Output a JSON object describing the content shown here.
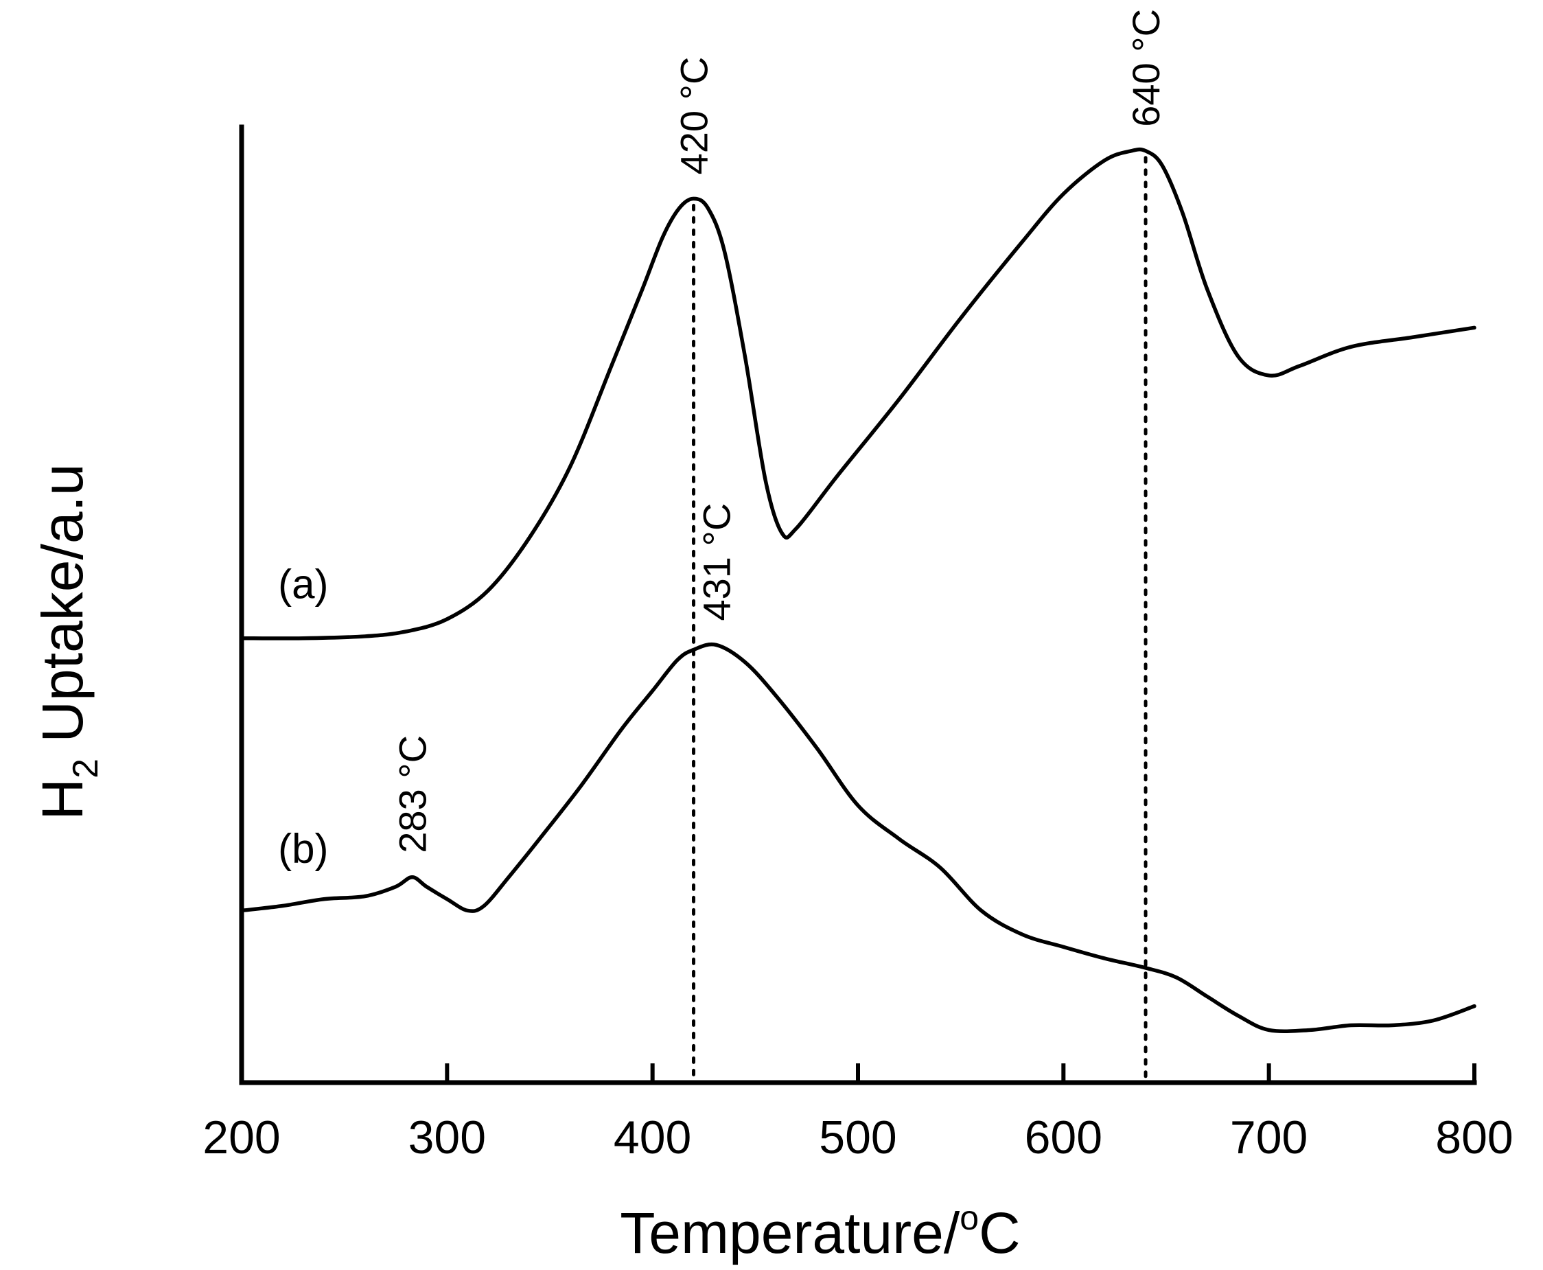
{
  "chart_data": {
    "type": "line",
    "title": "",
    "xlabel": "Temperature/°C",
    "ylabel": "H2 Uptake/a.u",
    "ylabel_parts": {
      "main": "H",
      "sub": "2",
      "rest": " Uptake/a.u"
    },
    "xlabel_parts": {
      "main": "Temperature/",
      "sup": "o",
      "rest": "C"
    },
    "xlim": [
      200,
      800
    ],
    "ylim": [
      0,
      100
    ],
    "xticks": [
      200,
      300,
      400,
      500,
      600,
      700,
      800
    ],
    "xtick_labels": [
      "200",
      "300",
      "400",
      "500",
      "600",
      "700",
      "800"
    ],
    "yticks": [],
    "grid": false,
    "legend": "none",
    "series": [
      {
        "name": "(a)",
        "x": [
          200,
          230,
          260,
          280,
          300,
          320,
          340,
          360,
          380,
          395,
          405,
          413,
          420,
          427,
          435,
          445,
          455,
          463,
          470,
          490,
          520,
          550,
          580,
          600,
          620,
          633,
          640,
          648,
          658,
          670,
          685,
          700,
          715,
          740,
          770,
          800
        ],
        "y": [
          46.5,
          46.5,
          46.7,
          47.2,
          48.5,
          51.5,
          57,
          64.5,
          75,
          83,
          88.5,
          91.5,
          92.5,
          91.5,
          87,
          76,
          63,
          57.5,
          58,
          63.5,
          71.5,
          80,
          88,
          93,
          96.5,
          97.5,
          97.5,
          96,
          91,
          83,
          76,
          74,
          75,
          77,
          78,
          79
        ]
      },
      {
        "name": "(b)",
        "x": [
          200,
          220,
          240,
          260,
          275,
          283,
          290,
          300,
          310,
          318,
          330,
          345,
          365,
          385,
          400,
          412,
          420,
          431,
          445,
          460,
          480,
          500,
          520,
          540,
          560,
          580,
          600,
          620,
          640,
          655,
          670,
          685,
          700,
          720,
          740,
          760,
          780,
          800
        ],
        "y": [
          18,
          18.5,
          19.2,
          19.5,
          20.5,
          21.5,
          20.5,
          19.2,
          18,
          18.5,
          21.5,
          25.5,
          31,
          37,
          41,
          44.2,
          45.3,
          45.8,
          44,
          40.5,
          35,
          29,
          25.5,
          22.5,
          18,
          15.5,
          14.2,
          13,
          12,
          11,
          9,
          7,
          5.5,
          5.5,
          6,
          6,
          6.5,
          8
        ]
      }
    ],
    "guides": [
      {
        "x": 420,
        "from_series": "(a)",
        "to": "axis"
      },
      {
        "x": 640,
        "from_series": "(a)",
        "to": "axis"
      }
    ],
    "annotations": [
      {
        "text": "420 °C",
        "x": 420,
        "series": "(a)",
        "rotation": -90
      },
      {
        "text": "640 °C",
        "x": 640,
        "series": "(a)",
        "rotation": -90
      },
      {
        "text": "431 °C",
        "x": 431,
        "series": "(b)",
        "rotation": -90
      },
      {
        "text": "283 °C",
        "x": 283,
        "series": "(b)",
        "rotation": -90
      }
    ],
    "series_labels": [
      {
        "text": "(a)",
        "series": "(a)"
      },
      {
        "text": "(b)",
        "series": "(b)"
      }
    ]
  }
}
